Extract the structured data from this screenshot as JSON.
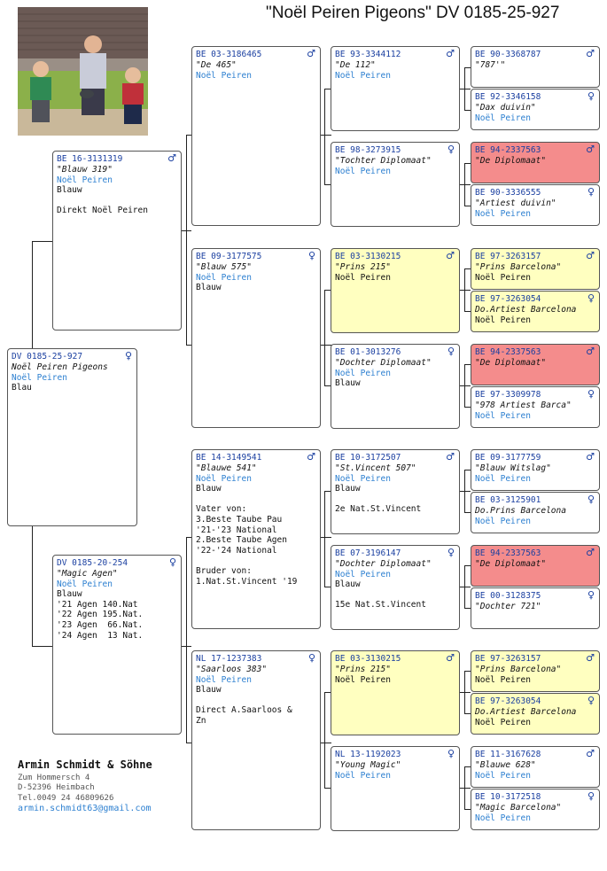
{
  "header": {
    "title": "\"Noël Peiren Pigeons\"  DV  0185-25-927"
  },
  "footer": {
    "name": "Armin Schmidt & Söhne",
    "street": "Zum Hommersch 4",
    "city": "D-52396 Heimbach",
    "tel": "Tel.0049 24 46809626",
    "email": "armin.schmidt63@gmail.com"
  },
  "symbols": {
    "male": "♂",
    "female": "♀"
  },
  "pigeons": {
    "subject": {
      "ring": "DV  0185-25-927",
      "sex": "♀",
      "name": "Noël Peiren Pigeons",
      "breeder": "Noël Peiren",
      "lines": [
        "Blau"
      ]
    },
    "sire": {
      "ring": "BE  16-3131319",
      "sex": "♂",
      "name": "\"Blauw 319\"",
      "breeder": "Noël Peiren",
      "lines": [
        "Blauw",
        "",
        "Direkt Noël Peiren"
      ]
    },
    "dam": {
      "ring": "DV  0185-20-254",
      "sex": "♀",
      "name": "\"Magic Agen\"",
      "breeder": "Noël Peiren",
      "lines": [
        "Blauw",
        "'21 Agen 140.Nat",
        "'22 Agen 195.Nat.",
        "'23 Agen  66.Nat.",
        "'24 Agen  13 Nat."
      ]
    },
    "ss": {
      "ring": "BE  03-3186465",
      "sex": "♂",
      "name": "\"De 465\"",
      "breeder": "Noël Peiren",
      "lines": []
    },
    "sd": {
      "ring": "BE  09-3177575",
      "sex": "♀",
      "name": "\"Blauw 575\"",
      "breeder": "Noël Peiren",
      "lines": [
        "Blauw"
      ]
    },
    "ds": {
      "ring": "BE  14-3149541",
      "sex": "♂",
      "name": "\"Blauwe 541\"",
      "breeder": "Noël Peiren",
      "lines": [
        "Blauw",
        "",
        "Vater von:",
        "3.Beste Taube Pau",
        "'21-'23 National",
        "2.Beste Taube Agen",
        "'22-'24 National",
        "",
        "Bruder von:",
        "1.Nat.St.Vincent '19"
      ]
    },
    "dd": {
      "ring": "NL  17-1237383",
      "sex": "♀",
      "name": "\"Saarloos 383\"",
      "breeder": "Noël Peiren",
      "lines": [
        "Blauw",
        "",
        "Direct A.Saarloos &",
        "Zn"
      ]
    },
    "sss": {
      "ring": "BE  93-3344112",
      "sex": "♂",
      "name": "\"De 112\"",
      "breeder": "Noël Peiren",
      "lines": []
    },
    "ssd": {
      "ring": "BE  98-3273915",
      "sex": "♀",
      "name": "\"Tochter Diplomaat\"",
      "breeder": "Noël Peiren",
      "lines": []
    },
    "sds": {
      "ring": "BE  03-3130215",
      "sex": "♂",
      "name": "\"Prins 215\"",
      "breeder": "",
      "lines": [
        "Noël Peiren"
      ]
    },
    "sdd": {
      "ring": "BE  01-3013276",
      "sex": "♀",
      "name": "\"Dochter Diplomaat\"",
      "breeder": "Noël Peiren",
      "lines": [
        "Blauw"
      ]
    },
    "dss": {
      "ring": "BE  10-3172507",
      "sex": "♂",
      "name": "\"St.Vincent 507\"",
      "breeder": "Noël Peiren",
      "lines": [
        "Blauw",
        "",
        "2e Nat.St.Vincent"
      ]
    },
    "dsd": {
      "ring": "BE  07-3196147",
      "sex": "♀",
      "name": "\"Dochter Diplomaat\"",
      "breeder": "Noël Peiren",
      "lines": [
        "Blauw",
        "",
        "15e Nat.St.Vincent"
      ]
    },
    "dds": {
      "ring": "BE  03-3130215",
      "sex": "♂",
      "name": "\"Prins 215\"",
      "breeder": "",
      "lines": [
        "Noël Peiren"
      ]
    },
    "ddd": {
      "ring": "NL  13-1192023",
      "sex": "♀",
      "name": "\"Young Magic\"",
      "breeder": "Noël Peiren",
      "lines": []
    },
    "g1": {
      "ring": "BE  90-3368787",
      "sex": "♂",
      "name": "\"787'\"",
      "breeder": "",
      "lines": []
    },
    "g2": {
      "ring": "BE  92-3346158",
      "sex": "♀",
      "name": "\"Dax duivin\"",
      "breeder": "Noël Peiren",
      "lines": []
    },
    "g3": {
      "ring": "BE  94-2337563",
      "sex": "♂",
      "name": "\"De Diplomaat\"",
      "breeder": "",
      "lines": []
    },
    "g4": {
      "ring": "BE  90-3336555",
      "sex": "♀",
      "name": "\"Artiest duivin\"",
      "breeder": "Noël Peiren",
      "lines": []
    },
    "g5": {
      "ring": "BE  97-3263157",
      "sex": "♂",
      "name": "\"Prins Barcelona\"",
      "breeder": "",
      "lines": [
        "Noël Peiren"
      ]
    },
    "g6": {
      "ring": "BE  97-3263054",
      "sex": "♀",
      "name": "Do.Artiest Barcelona",
      "breeder": "",
      "lines": [
        "Noël Peiren"
      ]
    },
    "g7": {
      "ring": "BE  94-2337563",
      "sex": "♂",
      "name": "\"De Diplomaat\"",
      "breeder": "",
      "lines": []
    },
    "g8": {
      "ring": "BE  97-3309978",
      "sex": "♀",
      "name": "\"978 Artiest Barca\"",
      "breeder": "Noël Peiren",
      "lines": []
    },
    "g9": {
      "ring": "BE  09-3177759",
      "sex": "♂",
      "name": "\"Blauw Witslag\"",
      "breeder": "Noël Peiren",
      "lines": []
    },
    "g10": {
      "ring": "BE  03-3125901",
      "sex": "♀",
      "name": "Do.Prins Barcelona",
      "breeder": "Noël Peiren",
      "lines": []
    },
    "g11": {
      "ring": "BE  94-2337563",
      "sex": "♂",
      "name": "\"De Diplomaat\"",
      "breeder": "",
      "lines": []
    },
    "g12": {
      "ring": "BE  00-3128375",
      "sex": "♀",
      "name": "\"Dochter 721\"",
      "breeder": "",
      "lines": []
    },
    "g13": {
      "ring": "BE  97-3263157",
      "sex": "♂",
      "name": "\"Prins Barcelona\"",
      "breeder": "",
      "lines": [
        "Noël Peiren"
      ]
    },
    "g14": {
      "ring": "BE  97-3263054",
      "sex": "♀",
      "name": "Do.Artiest Barcelona",
      "breeder": "",
      "lines": [
        "Noël Peiren"
      ]
    },
    "g15": {
      "ring": "BE  11-3167628",
      "sex": "♂",
      "name": "\"Blauwe 628\"",
      "breeder": "Noël Peiren",
      "lines": []
    },
    "g16": {
      "ring": "BE  10-3172518",
      "sex": "♀",
      "name": "\"Magic Barcelona\"",
      "breeder": "Noël Peiren",
      "lines": []
    }
  }
}
